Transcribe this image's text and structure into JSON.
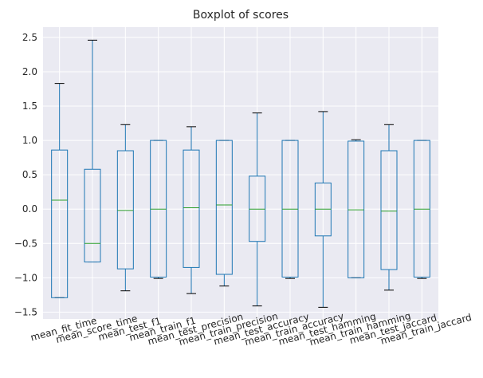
{
  "chart_data": {
    "type": "boxplot",
    "title": "Boxplot of scores",
    "xlabel": "",
    "ylabel": "",
    "ylim": [
      -1.6,
      2.65
    ],
    "yticks": [
      -1.5,
      -1.0,
      -0.5,
      0.0,
      0.5,
      1.0,
      1.5,
      2.0,
      2.5
    ],
    "ytick_labels": [
      "−1.5",
      "−1.0",
      "−0.5",
      "0.0",
      "0.5",
      "1.0",
      "1.5",
      "2.0",
      "2.5"
    ],
    "grid": true,
    "colors": {
      "background": "#eaeaf2",
      "grid": "#ffffff",
      "box": "#1f77b4",
      "median": "#2ca02c",
      "text": "#262626"
    },
    "categories": [
      "mean_fit_time",
      "mean_score_time",
      "mean_test_f1",
      "mean_train_f1",
      "mean_test_precision",
      "mean_train_precision",
      "mean_test_accuracy",
      "mean_train_accuracy",
      "mean_test_hamming",
      "mean_train_hamming",
      "mean_test_jaccard",
      "mean_train_jaccard"
    ],
    "boxes": [
      {
        "whislo": -1.29,
        "q1": -1.29,
        "med": 0.13,
        "q3": 0.86,
        "whishi": 1.83
      },
      {
        "whislo": -0.77,
        "q1": -0.77,
        "med": -0.5,
        "q3": 0.58,
        "whishi": 2.46
      },
      {
        "whislo": -1.19,
        "q1": -0.87,
        "med": -0.02,
        "q3": 0.85,
        "whishi": 1.23
      },
      {
        "whislo": -1.01,
        "q1": -0.99,
        "med": 0.0,
        "q3": 1.0,
        "whishi": 1.0
      },
      {
        "whislo": -1.23,
        "q1": -0.85,
        "med": 0.02,
        "q3": 0.86,
        "whishi": 1.2
      },
      {
        "whislo": -1.12,
        "q1": -0.95,
        "med": 0.06,
        "q3": 1.0,
        "whishi": 1.0
      },
      {
        "whislo": -1.41,
        "q1": -0.47,
        "med": 0.0,
        "q3": 0.48,
        "whishi": 1.4
      },
      {
        "whislo": -1.01,
        "q1": -0.99,
        "med": 0.0,
        "q3": 1.0,
        "whishi": 1.0
      },
      {
        "whislo": -1.43,
        "q1": -0.39,
        "med": 0.0,
        "q3": 0.38,
        "whishi": 1.42
      },
      {
        "whislo": -1.0,
        "q1": -1.0,
        "med": -0.01,
        "q3": 0.99,
        "whishi": 1.01
      },
      {
        "whislo": -1.18,
        "q1": -0.88,
        "med": -0.03,
        "q3": 0.85,
        "whishi": 1.23
      },
      {
        "whislo": -1.01,
        "q1": -0.99,
        "med": 0.0,
        "q3": 1.0,
        "whishi": 1.0
      }
    ]
  }
}
